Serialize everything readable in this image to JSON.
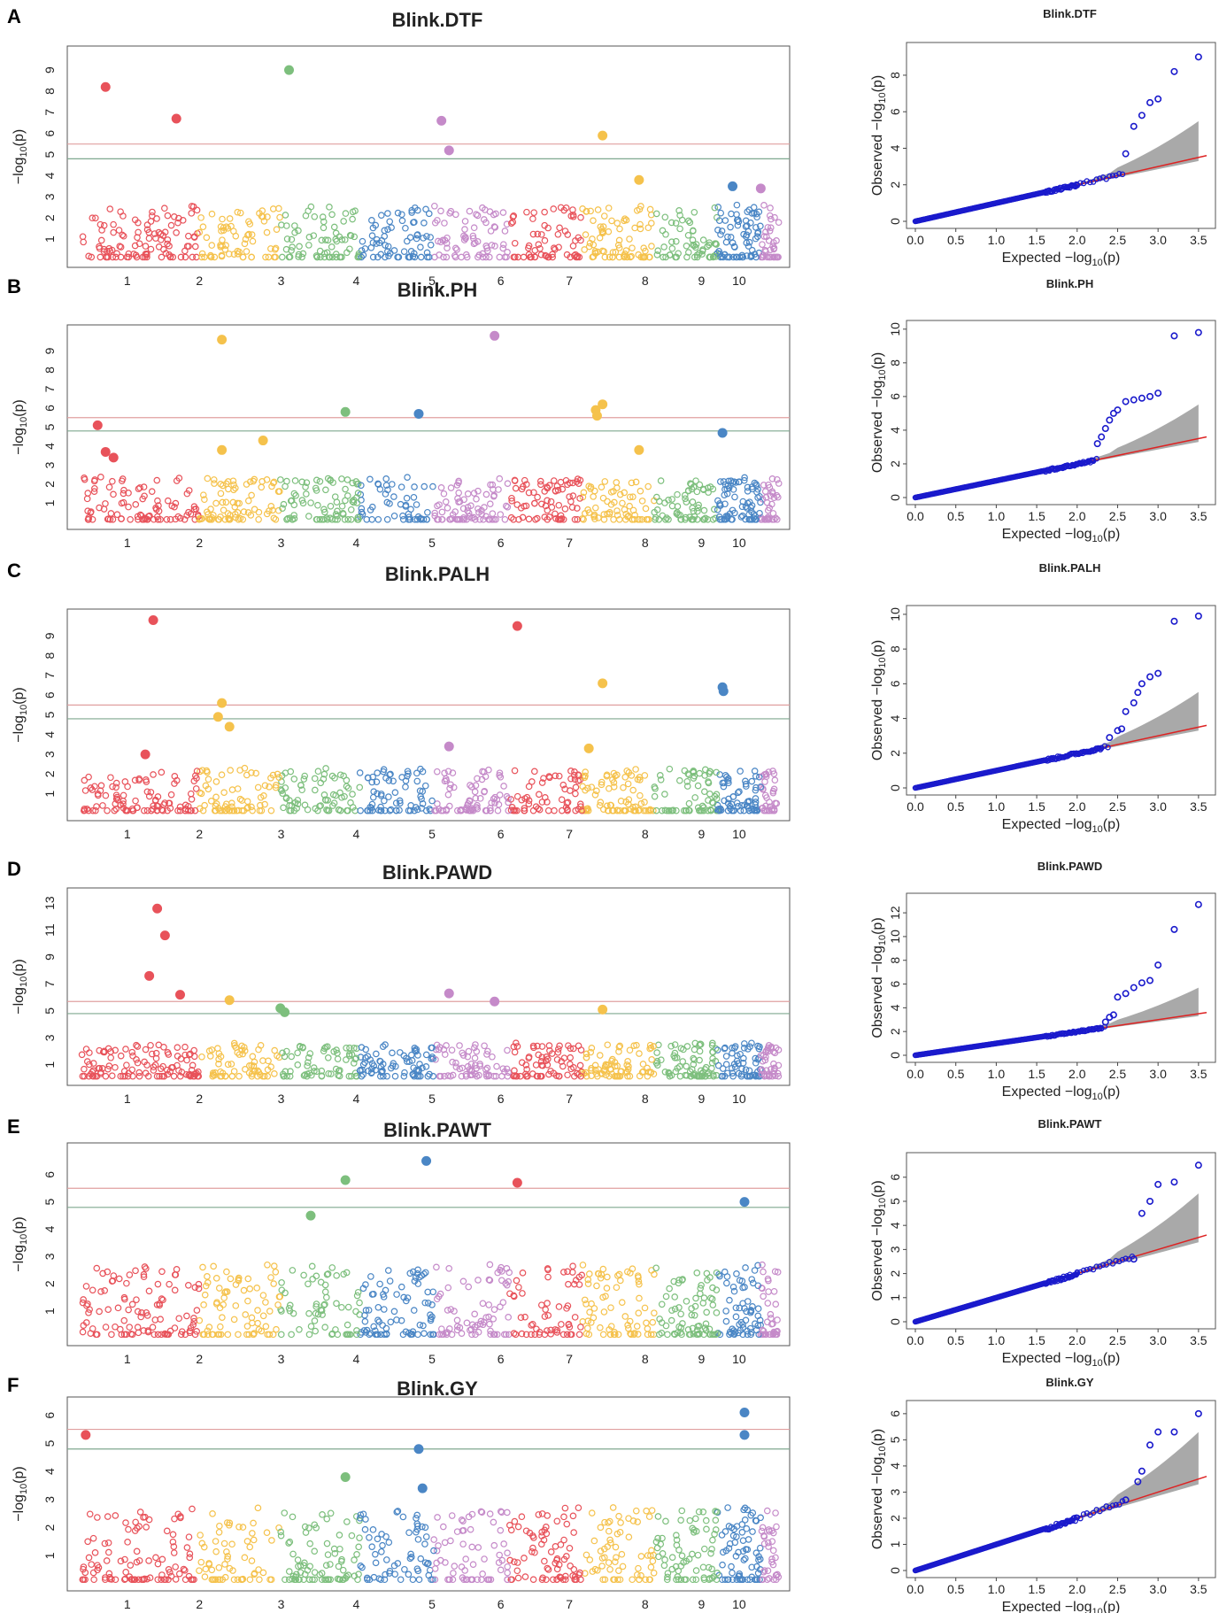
{
  "figure": {
    "colors": {
      "chromosomes": [
        "#e8525a",
        "#f5c24c",
        "#7dbf7d",
        "#4a86c5",
        "#c58ac9"
      ],
      "threshold_upper": "#e0a0a0",
      "threshold_lower": "#7fa88f",
      "qq_points": "#1a1acc",
      "qq_line": "#dd2222",
      "qq_band": "#a9a9a9"
    }
  },
  "chart_data": [
    {
      "panel": "A",
      "type": "scatter",
      "subtype": "manhattan",
      "title": "Blink.DTF",
      "ylabel": "-log10(p)",
      "yticks": [
        1,
        2,
        3,
        4,
        5,
        6,
        7,
        8,
        9
      ],
      "ylim": [
        0,
        9.8
      ],
      "chromosomes": [
        "1",
        "2",
        "3",
        "4",
        "5",
        "6",
        "7",
        "8",
        "9",
        "10"
      ],
      "thresholds": [
        5.5,
        4.8
      ],
      "background_max": 2.5,
      "significant": [
        {
          "chr": 1,
          "pos": 0.3,
          "y": 8.2
        },
        {
          "chr": 2,
          "pos": 0.2,
          "y": 6.7
        },
        {
          "chr": 3,
          "pos": 0.6,
          "y": 9.0
        },
        {
          "chr": 5,
          "pos": 0.6,
          "y": 6.6
        },
        {
          "chr": 5,
          "pos": 0.7,
          "y": 5.2
        },
        {
          "chr": 7,
          "pos": 0.8,
          "y": 5.9
        },
        {
          "chr": 8,
          "pos": 0.3,
          "y": 3.8
        },
        {
          "chr": 9,
          "pos": 0.8,
          "y": 3.5
        },
        {
          "chr": 10,
          "pos": 0.5,
          "y": 3.4
        }
      ]
    },
    {
      "panel": "A",
      "type": "scatter",
      "subtype": "qq",
      "title": "Blink.DTF",
      "xlabel": "Expected -log10(p)",
      "ylabel": "Observed -log10(p)",
      "xticks": [
        "0.0",
        "0.5",
        "1.0",
        "1.5",
        "2.0",
        "2.5",
        "3.0",
        "3.5"
      ],
      "yticks": [
        0,
        2,
        4,
        6,
        8
      ],
      "xlim": [
        0,
        3.6
      ],
      "ylim": [
        0,
        9.5
      ],
      "deviation_start": 2.0,
      "tail": [
        [
          2.6,
          3.7
        ],
        [
          2.7,
          5.2
        ],
        [
          2.8,
          5.8
        ],
        [
          2.9,
          6.5
        ],
        [
          3.0,
          6.7
        ],
        [
          3.2,
          8.2
        ],
        [
          3.5,
          9.0
        ]
      ]
    },
    {
      "panel": "B",
      "type": "scatter",
      "subtype": "manhattan",
      "title": "Blink.PH",
      "ylabel": "-log10(p)",
      "yticks": [
        1,
        2,
        3,
        4,
        5,
        6,
        7,
        8,
        9
      ],
      "ylim": [
        0,
        10
      ],
      "chromosomes": [
        "1",
        "2",
        "3",
        "4",
        "5",
        "6",
        "7",
        "8",
        "9",
        "10"
      ],
      "thresholds": [
        5.5,
        4.8
      ],
      "background_max": 2.3,
      "significant": [
        {
          "chr": 1,
          "pos": 0.2,
          "y": 5.1
        },
        {
          "chr": 1,
          "pos": 0.3,
          "y": 3.7
        },
        {
          "chr": 1,
          "pos": 0.4,
          "y": 3.4
        },
        {
          "chr": 2,
          "pos": 0.8,
          "y": 9.6
        },
        {
          "chr": 2,
          "pos": 0.8,
          "y": 3.8
        },
        {
          "chr": 3,
          "pos": 0.3,
          "y": 4.3
        },
        {
          "chr": 4,
          "pos": 0.3,
          "y": 5.8
        },
        {
          "chr": 5,
          "pos": 0.3,
          "y": 5.7
        },
        {
          "chr": 6,
          "pos": 0.3,
          "y": 9.8
        },
        {
          "chr": 7,
          "pos": 0.8,
          "y": 6.2
        },
        {
          "chr": 7,
          "pos": 0.7,
          "y": 5.9
        },
        {
          "chr": 7,
          "pos": 0.72,
          "y": 5.6
        },
        {
          "chr": 8,
          "pos": 0.3,
          "y": 3.8
        },
        {
          "chr": 9,
          "pos": 0.6,
          "y": 4.7
        }
      ]
    },
    {
      "panel": "B",
      "type": "scatter",
      "subtype": "qq",
      "title": "Blink.PH",
      "xlabel": "Expected -log10(p)",
      "ylabel": "Observed -log10(p)",
      "xticks": [
        "0.0",
        "0.5",
        "1.0",
        "1.5",
        "2.0",
        "2.5",
        "3.0",
        "3.5"
      ],
      "yticks": [
        0,
        2,
        4,
        6,
        8,
        10
      ],
      "xlim": [
        0,
        3.6
      ],
      "ylim": [
        0,
        10.2
      ],
      "deviation_start": 2.2,
      "tail": [
        [
          2.25,
          3.2
        ],
        [
          2.3,
          3.6
        ],
        [
          2.35,
          4.1
        ],
        [
          2.4,
          4.6
        ],
        [
          2.45,
          5.0
        ],
        [
          2.5,
          5.2
        ],
        [
          2.6,
          5.7
        ],
        [
          2.7,
          5.8
        ],
        [
          2.8,
          5.9
        ],
        [
          2.9,
          6.0
        ],
        [
          3.0,
          6.2
        ],
        [
          3.2,
          9.6
        ],
        [
          3.5,
          9.8
        ]
      ]
    },
    {
      "panel": "C",
      "type": "scatter",
      "subtype": "manhattan",
      "title": "Blink.PALH",
      "ylabel": "-log10(p)",
      "yticks": [
        1,
        2,
        3,
        4,
        5,
        6,
        7,
        8,
        9
      ],
      "ylim": [
        0,
        10
      ],
      "chromosomes": [
        "1",
        "2",
        "3",
        "4",
        "5",
        "6",
        "7",
        "8",
        "9",
        "10"
      ],
      "thresholds": [
        5.5,
        4.8
      ],
      "background_max": 2.2,
      "significant": [
        {
          "chr": 1,
          "pos": 0.8,
          "y": 3.0
        },
        {
          "chr": 1,
          "pos": 0.9,
          "y": 9.8
        },
        {
          "chr": 2,
          "pos": 0.8,
          "y": 5.6
        },
        {
          "chr": 2,
          "pos": 0.75,
          "y": 4.9
        },
        {
          "chr": 2,
          "pos": 0.9,
          "y": 4.4
        },
        {
          "chr": 6,
          "pos": 0.6,
          "y": 9.5
        },
        {
          "chr": 5,
          "pos": 0.7,
          "y": 3.4
        },
        {
          "chr": 7,
          "pos": 0.8,
          "y": 6.6
        },
        {
          "chr": 7,
          "pos": 0.6,
          "y": 3.3
        },
        {
          "chr": 9,
          "pos": 0.6,
          "y": 6.4
        },
        {
          "chr": 9,
          "pos": 0.62,
          "y": 6.2
        }
      ]
    },
    {
      "panel": "C",
      "type": "scatter",
      "subtype": "qq",
      "title": "Blink.PALH",
      "xlabel": "Expected -log10(p)",
      "ylabel": "Observed -log10(p)",
      "xticks": [
        "0.0",
        "0.5",
        "1.0",
        "1.5",
        "2.0",
        "2.5",
        "3.0",
        "3.5"
      ],
      "yticks": [
        0,
        2,
        4,
        6,
        8,
        10
      ],
      "xlim": [
        0,
        3.6
      ],
      "ylim": [
        0,
        10.2
      ],
      "deviation_start": 2.3,
      "tail": [
        [
          2.4,
          2.9
        ],
        [
          2.5,
          3.3
        ],
        [
          2.55,
          3.4
        ],
        [
          2.6,
          4.4
        ],
        [
          2.7,
          4.9
        ],
        [
          2.75,
          5.5
        ],
        [
          2.8,
          6.0
        ],
        [
          2.9,
          6.4
        ],
        [
          3.0,
          6.6
        ],
        [
          3.2,
          9.6
        ],
        [
          3.5,
          9.9
        ]
      ]
    },
    {
      "panel": "D",
      "type": "scatter",
      "subtype": "manhattan",
      "title": "Blink.PAWD",
      "ylabel": "-log10(p)",
      "yticks": [
        1,
        3,
        5,
        7,
        9,
        11,
        13
      ],
      "ylim": [
        0,
        13.6
      ],
      "chromosomes": [
        "1",
        "2",
        "3",
        "4",
        "5",
        "6",
        "7",
        "8",
        "9",
        "10"
      ],
      "thresholds": [
        5.7,
        4.8
      ],
      "background_max": 2.5,
      "significant": [
        {
          "chr": 1,
          "pos": 0.85,
          "y": 7.6
        },
        {
          "chr": 1,
          "pos": 0.95,
          "y": 12.6
        },
        {
          "chr": 2,
          "pos": 0.05,
          "y": 10.6
        },
        {
          "chr": 2,
          "pos": 0.25,
          "y": 6.2
        },
        {
          "chr": 2,
          "pos": 0.9,
          "y": 5.8
        },
        {
          "chr": 3,
          "pos": 0.5,
          "y": 5.2
        },
        {
          "chr": 3,
          "pos": 0.55,
          "y": 4.9
        },
        {
          "chr": 5,
          "pos": 0.7,
          "y": 6.3
        },
        {
          "chr": 6,
          "pos": 0.3,
          "y": 5.7
        },
        {
          "chr": 7,
          "pos": 0.8,
          "y": 5.1
        }
      ]
    },
    {
      "panel": "D",
      "type": "scatter",
      "subtype": "qq",
      "title": "Blink.PAWD",
      "xlabel": "Expected -log10(p)",
      "ylabel": "Observed -log10(p)",
      "xticks": [
        "0.0",
        "0.5",
        "1.0",
        "1.5",
        "2.0",
        "2.5",
        "3.0",
        "3.5"
      ],
      "yticks": [
        0,
        2,
        4,
        6,
        8,
        10,
        12
      ],
      "xlim": [
        0,
        3.6
      ],
      "ylim": [
        0,
        13.2
      ],
      "deviation_start": 2.3,
      "tail": [
        [
          2.35,
          2.8
        ],
        [
          2.4,
          3.2
        ],
        [
          2.45,
          3.4
        ],
        [
          2.5,
          4.9
        ],
        [
          2.6,
          5.2
        ],
        [
          2.7,
          5.7
        ],
        [
          2.8,
          6.1
        ],
        [
          2.9,
          6.3
        ],
        [
          3.0,
          7.6
        ],
        [
          3.2,
          10.6
        ],
        [
          3.5,
          12.7
        ]
      ]
    },
    {
      "panel": "E",
      "type": "scatter",
      "subtype": "manhattan",
      "title": "Blink.PAWT",
      "ylabel": "-log10(p)",
      "yticks": [
        1,
        2,
        3,
        4,
        5,
        6
      ],
      "ylim": [
        0,
        6.9
      ],
      "chromosomes": [
        "1",
        "2",
        "3",
        "4",
        "5",
        "6",
        "7",
        "8",
        "9",
        "10"
      ],
      "thresholds": [
        5.5,
        4.8
      ],
      "background_max": 2.6,
      "significant": [
        {
          "chr": 3,
          "pos": 0.85,
          "y": 4.5
        },
        {
          "chr": 4,
          "pos": 0.3,
          "y": 5.8
        },
        {
          "chr": 5,
          "pos": 0.4,
          "y": 6.5
        },
        {
          "chr": 6,
          "pos": 0.6,
          "y": 5.7
        },
        {
          "chr": 10,
          "pos": 0.05,
          "y": 5.0
        }
      ]
    },
    {
      "panel": "E",
      "type": "scatter",
      "subtype": "qq",
      "title": "Blink.PAWT",
      "xlabel": "Expected -log10(p)",
      "ylabel": "Observed -log10(p)",
      "xticks": [
        "0.0",
        "0.5",
        "1.0",
        "1.5",
        "2.0",
        "2.5",
        "3.0",
        "3.5"
      ],
      "yticks": [
        0,
        1,
        2,
        3,
        4,
        5,
        6
      ],
      "xlim": [
        0,
        3.6
      ],
      "ylim": [
        0,
        6.8
      ],
      "deviation_start": 2.0,
      "tail": [
        [
          2.7,
          2.6
        ],
        [
          2.8,
          4.5
        ],
        [
          2.9,
          5.0
        ],
        [
          3.0,
          5.7
        ],
        [
          3.2,
          5.8
        ],
        [
          3.5,
          6.5
        ]
      ]
    },
    {
      "panel": "F",
      "type": "scatter",
      "subtype": "manhattan",
      "title": "Blink.GY",
      "ylabel": "-log10(p)",
      "yticks": [
        1,
        2,
        3,
        4,
        5,
        6
      ],
      "ylim": [
        0,
        6.4
      ],
      "chromosomes": [
        "1",
        "2",
        "3",
        "4",
        "5",
        "6",
        "7",
        "8",
        "9",
        "10"
      ],
      "thresholds": [
        5.5,
        4.8
      ],
      "background_max": 2.6,
      "significant": [
        {
          "chr": 1,
          "pos": 0.05,
          "y": 5.3
        },
        {
          "chr": 4,
          "pos": 0.3,
          "y": 3.8
        },
        {
          "chr": 5,
          "pos": 0.3,
          "y": 4.8
        },
        {
          "chr": 5,
          "pos": 0.35,
          "y": 3.4
        },
        {
          "chr": 10,
          "pos": 0.05,
          "y": 6.1
        },
        {
          "chr": 10,
          "pos": 0.05,
          "y": 5.3
        }
      ]
    },
    {
      "panel": "F",
      "type": "scatter",
      "subtype": "qq",
      "title": "Blink.GY",
      "xlabel": "Expected -log10(p)",
      "ylabel": "Observed -log10(p)",
      "xticks": [
        "0.0",
        "0.5",
        "1.0",
        "1.5",
        "2.0",
        "2.5",
        "3.0",
        "3.5"
      ],
      "yticks": [
        0,
        1,
        2,
        3,
        4,
        5,
        6
      ],
      "xlim": [
        0,
        3.6
      ],
      "ylim": [
        0,
        6.3
      ],
      "deviation_start": 2.0,
      "tail": [
        [
          2.6,
          2.7
        ],
        [
          2.75,
          3.4
        ],
        [
          2.8,
          3.8
        ],
        [
          2.9,
          4.8
        ],
        [
          3.0,
          5.3
        ],
        [
          3.2,
          5.3
        ],
        [
          3.5,
          6.0
        ]
      ]
    }
  ]
}
